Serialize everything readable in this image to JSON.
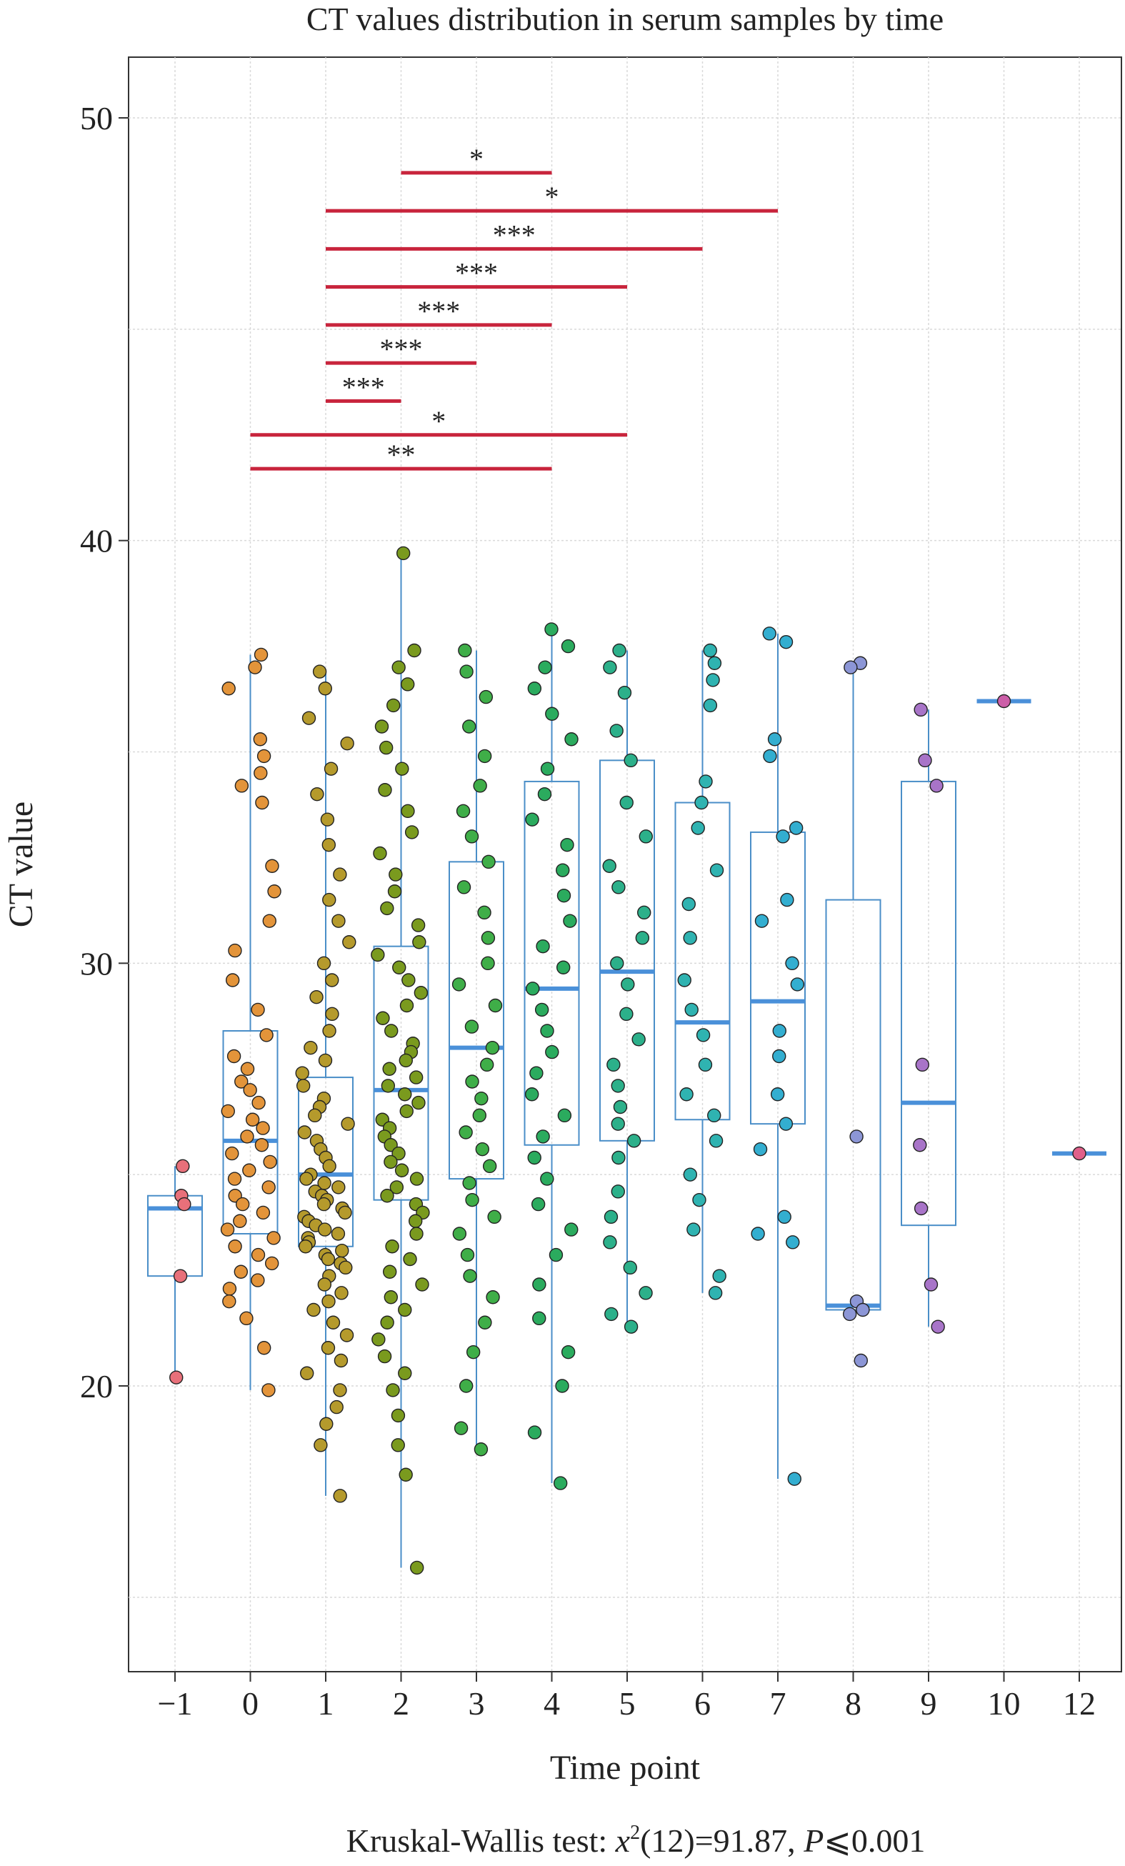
{
  "chart_data": {
    "type": "box",
    "title": "CT values distribution in serum samples by time",
    "xlabel": "Time point",
    "ylabel": "CT value",
    "ylim": [
      13.5,
      51.5
    ],
    "yticks": [
      20,
      30,
      40,
      50
    ],
    "grid": true,
    "footer": {
      "prefix": "Kruskal-Wallis test: ",
      "stat_symbol": "x",
      "stat_exponent": "2",
      "stat_rest": "(12)=91.87, ",
      "p_symbol": "P",
      "p_rest": "⩽0.001"
    },
    "colors": {
      "box": "#4a8ec8",
      "median": "#4a90d9",
      "significance_line": "#c8243c",
      "grid": "#d9d9d9"
    },
    "groups": [
      {
        "label": "−1",
        "color": "#e8707a",
        "q1": 22.6,
        "median": 24.2,
        "q3": 24.5,
        "whisker_low": 20.2,
        "whisker_high": 25.2,
        "points": [
          25.2,
          24.5,
          24.3,
          22.6,
          20.2
        ]
      },
      {
        "label": "0",
        "color": "#e3943a",
        "q1": 23.6,
        "median": 25.8,
        "q3": 28.4,
        "whisker_low": 19.9,
        "whisker_high": 37.3,
        "points": [
          37.3,
          37.0,
          36.5,
          35.3,
          34.9,
          34.5,
          34.2,
          33.8,
          32.3,
          31.7,
          31.0,
          30.3,
          29.6,
          28.9,
          28.3,
          27.8,
          27.5,
          27.2,
          27.0,
          26.7,
          26.5,
          26.3,
          26.1,
          25.9,
          25.7,
          25.5,
          25.3,
          25.1,
          24.9,
          24.7,
          24.5,
          24.3,
          24.1,
          23.9,
          23.7,
          23.5,
          23.3,
          23.1,
          22.9,
          22.7,
          22.5,
          22.3,
          22.0,
          21.6,
          20.9,
          19.9
        ]
      },
      {
        "label": "1",
        "color": "#b59a2c",
        "q1": 23.3,
        "median": 25.0,
        "q3": 27.3,
        "whisker_low": 17.4,
        "whisker_high": 36.9,
        "points": [
          36.9,
          36.5,
          35.8,
          35.2,
          34.6,
          34.0,
          33.4,
          32.8,
          32.1,
          31.5,
          31.0,
          30.5,
          30.0,
          29.6,
          29.2,
          28.8,
          28.4,
          28.0,
          27.7,
          27.4,
          27.1,
          26.8,
          26.6,
          26.4,
          26.2,
          26.0,
          25.8,
          25.6,
          25.4,
          25.2,
          25.0,
          24.9,
          24.8,
          24.7,
          24.6,
          24.5,
          24.4,
          24.3,
          24.2,
          24.1,
          24.0,
          23.9,
          23.8,
          23.7,
          23.6,
          23.5,
          23.4,
          23.3,
          23.2,
          23.1,
          23.0,
          22.9,
          22.8,
          22.6,
          22.4,
          22.2,
          22.0,
          21.8,
          21.5,
          21.2,
          20.9,
          20.6,
          20.3,
          19.9,
          19.5,
          19.1,
          18.6,
          17.4
        ]
      },
      {
        "label": "2",
        "color": "#7a9a1e",
        "q1": 24.4,
        "median": 27.0,
        "q3": 30.4,
        "whisker_low": 15.7,
        "whisker_high": 39.7,
        "points": [
          39.7,
          37.4,
          37.0,
          36.6,
          36.1,
          35.6,
          35.1,
          34.6,
          34.1,
          33.6,
          33.1,
          32.6,
          32.1,
          31.7,
          31.3,
          30.9,
          30.5,
          30.2,
          29.9,
          29.6,
          29.3,
          29.0,
          28.7,
          28.4,
          28.1,
          27.9,
          27.7,
          27.5,
          27.3,
          27.1,
          26.9,
          26.7,
          26.5,
          26.3,
          26.1,
          25.9,
          25.7,
          25.5,
          25.3,
          25.1,
          24.9,
          24.7,
          24.5,
          24.3,
          24.1,
          23.9,
          23.6,
          23.3,
          23.0,
          22.7,
          22.4,
          22.1,
          21.8,
          21.5,
          21.1,
          20.7,
          20.3,
          19.9,
          19.3,
          18.6,
          17.9,
          15.7
        ]
      },
      {
        "label": "3",
        "color": "#3fae48",
        "q1": 24.9,
        "median": 28.0,
        "q3": 32.4,
        "whisker_low": 18.5,
        "whisker_high": 37.4,
        "points": [
          37.4,
          36.9,
          36.3,
          35.6,
          34.9,
          34.2,
          33.6,
          33.0,
          32.4,
          31.8,
          31.2,
          30.6,
          30.0,
          29.5,
          29.0,
          28.5,
          28.0,
          27.6,
          27.2,
          26.8,
          26.4,
          26.0,
          25.6,
          25.2,
          24.8,
          24.4,
          24.0,
          23.6,
          23.1,
          22.6,
          22.1,
          21.5,
          20.8,
          20.0,
          19.0,
          18.5
        ]
      },
      {
        "label": "4",
        "color": "#2bab5e",
        "q1": 25.7,
        "median": 29.4,
        "q3": 34.3,
        "whisker_low": 17.7,
        "whisker_high": 37.9,
        "points": [
          37.9,
          37.5,
          37.0,
          36.5,
          35.9,
          35.3,
          34.6,
          34.0,
          33.4,
          32.8,
          32.2,
          31.6,
          31.0,
          30.4,
          29.9,
          29.4,
          28.9,
          28.4,
          27.9,
          27.4,
          26.9,
          26.4,
          25.9,
          25.4,
          24.9,
          24.3,
          23.7,
          23.1,
          22.4,
          21.6,
          20.8,
          20.0,
          18.9,
          17.7
        ]
      },
      {
        "label": "5",
        "color": "#2cb08a",
        "q1": 25.8,
        "median": 29.8,
        "q3": 34.8,
        "whisker_low": 21.4,
        "whisker_high": 37.4,
        "points": [
          37.4,
          37.0,
          36.4,
          35.5,
          34.8,
          33.8,
          33.0,
          32.3,
          31.8,
          31.2,
          30.6,
          30.0,
          29.5,
          28.8,
          28.2,
          27.6,
          27.1,
          26.6,
          26.2,
          25.8,
          25.4,
          24.6,
          24.0,
          23.4,
          22.8,
          22.2,
          21.7,
          21.4
        ]
      },
      {
        "label": "6",
        "color": "#2fb3b1",
        "q1": 26.3,
        "median": 28.6,
        "q3": 33.8,
        "whisker_low": 22.2,
        "whisker_high": 37.4,
        "points": [
          37.4,
          37.1,
          36.7,
          36.1,
          34.3,
          33.8,
          33.2,
          32.2,
          31.4,
          30.6,
          29.6,
          28.9,
          28.3,
          27.6,
          26.9,
          26.4,
          25.8,
          25.0,
          24.4,
          23.7,
          22.6,
          22.2
        ]
      },
      {
        "label": "7",
        "color": "#33aed0",
        "q1": 26.2,
        "median": 29.1,
        "q3": 33.1,
        "whisker_low": 17.8,
        "whisker_high": 37.8,
        "points": [
          37.8,
          37.6,
          35.3,
          34.9,
          33.2,
          33.0,
          31.5,
          31.0,
          30.0,
          29.5,
          28.4,
          27.8,
          26.9,
          26.2,
          25.6,
          24.0,
          23.6,
          23.4,
          17.8
        ]
      },
      {
        "label": "8",
        "color": "#8c96d6",
        "q1": 21.8,
        "median": 21.9,
        "q3": 31.5,
        "whisker_low": 21.8,
        "whisker_high": 37.1,
        "points": [
          37.1,
          37.0,
          25.9,
          22.0,
          21.8,
          21.7,
          20.6
        ]
      },
      {
        "label": "9",
        "color": "#a874c8",
        "q1": 23.8,
        "median": 26.7,
        "q3": 34.3,
        "whisker_low": 21.4,
        "whisker_high": 36.0,
        "points": [
          36.0,
          34.8,
          34.2,
          27.6,
          25.7,
          24.2,
          22.4,
          21.4
        ]
      },
      {
        "label": "10",
        "color": "#cc5ea8",
        "q1": 36.2,
        "median": 36.2,
        "q3": 36.2,
        "whisker_low": 36.2,
        "whisker_high": 36.2,
        "points": [
          36.2
        ]
      },
      {
        "label": "12",
        "color": "#e0608a",
        "q1": 25.5,
        "median": 25.5,
        "q3": 25.5,
        "whisker_low": 25.5,
        "whisker_high": 25.5,
        "points": [
          25.5
        ]
      }
    ],
    "significance": [
      {
        "from": "2",
        "to": "4",
        "y": 48.7,
        "label": "*"
      },
      {
        "from": "1",
        "to": "7",
        "y": 47.8,
        "label": "*"
      },
      {
        "from": "1",
        "to": "6",
        "y": 46.9,
        "label": "***"
      },
      {
        "from": "1",
        "to": "5",
        "y": 46.0,
        "label": "***"
      },
      {
        "from": "1",
        "to": "4",
        "y": 45.1,
        "label": "***"
      },
      {
        "from": "1",
        "to": "3",
        "y": 44.2,
        "label": "***"
      },
      {
        "from": "1",
        "to": "2",
        "y": 43.3,
        "label": "***"
      },
      {
        "from": "0",
        "to": "5",
        "y": 42.5,
        "label": "*"
      },
      {
        "from": "0",
        "to": "4",
        "y": 41.7,
        "label": "**"
      }
    ]
  }
}
